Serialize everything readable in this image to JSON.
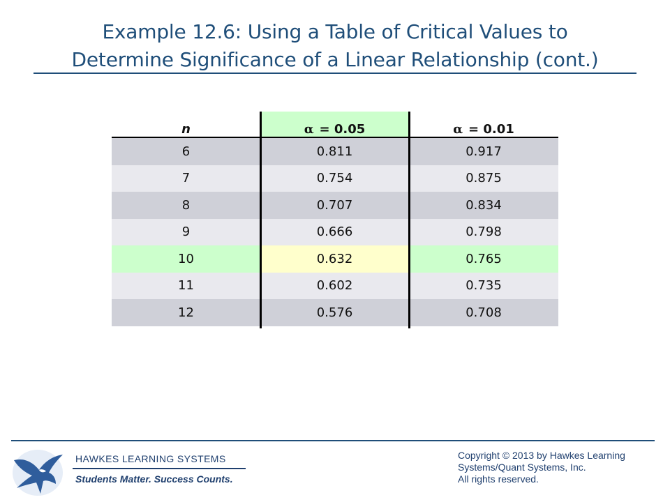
{
  "title": {
    "line1": "Example 12.6: Using a Table of Critical Values to",
    "line2": "Determine Significance of a Linear Relationship (cont.)"
  },
  "table": {
    "headers": {
      "n": "n",
      "alpha_symbol": "α",
      "alpha_005": "= 0.05",
      "alpha_001": "= 0.01"
    },
    "rows": [
      {
        "n": "6",
        "a05": "0.811",
        "a01": "0.917",
        "style": "dark"
      },
      {
        "n": "7",
        "a05": "0.754",
        "a01": "0.875",
        "style": "light"
      },
      {
        "n": "8",
        "a05": "0.707",
        "a01": "0.834",
        "style": "dark"
      },
      {
        "n": "9",
        "a05": "0.666",
        "a01": "0.798",
        "style": "light"
      },
      {
        "n": "10",
        "a05": "0.632",
        "a01": "0.765",
        "style": "highlight"
      },
      {
        "n": "11",
        "a05": "0.602",
        "a01": "0.735",
        "style": "light"
      },
      {
        "n": "12",
        "a05": "0.576",
        "a01": "0.708",
        "style": "dark"
      }
    ],
    "colors": {
      "header_mid": "#ccffcc",
      "row_dark": "#cfd0d8",
      "row_light": "#e9e9ee",
      "row_highlight": "#ccffcc",
      "cell_highlight": "#ffffcc"
    }
  },
  "footer": {
    "brand": "HAWKES LEARNING SYSTEMS",
    "tagline": "Students Matter. Success Counts.",
    "copyright_line1": "Copyright © 2013 by Hawkes Learning",
    "copyright_line2": "Systems/Quant Systems, Inc.",
    "copyright_line3": "All rights reserved.",
    "logo_icon": "hawk-logo-icon"
  },
  "colors": {
    "title": "#1f4e79",
    "brand": "#1f3f6e"
  }
}
